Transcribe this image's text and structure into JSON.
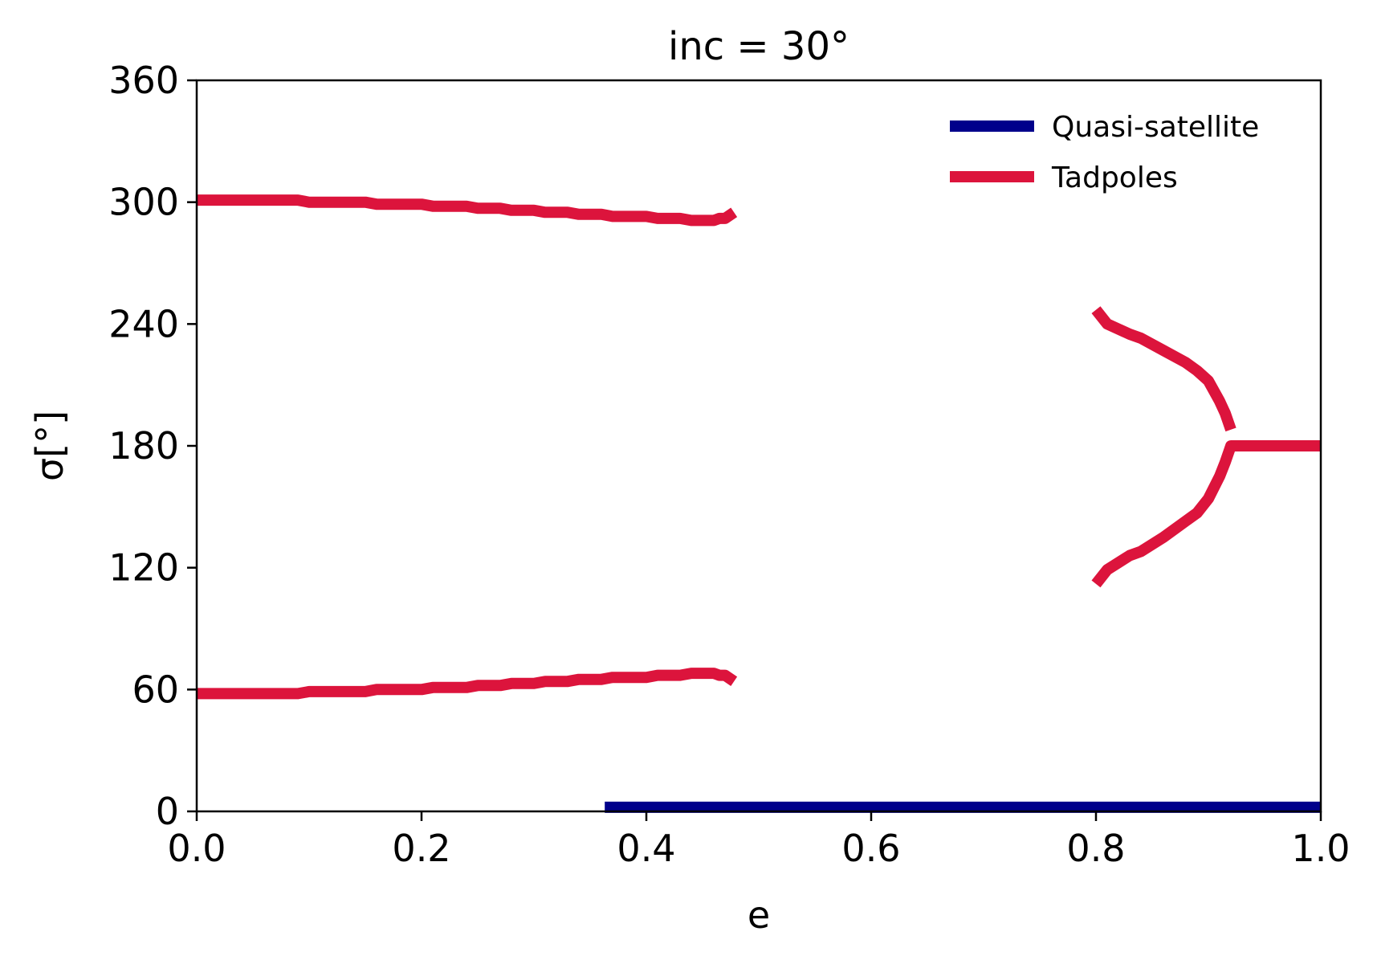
{
  "chart_data": {
    "type": "line",
    "title": "inc = 30°",
    "xlabel": "e",
    "ylabel": "σ[°]",
    "xlim": [
      0.0,
      1.0
    ],
    "ylim": [
      0,
      360
    ],
    "xticks": [
      "0.0",
      "0.2",
      "0.4",
      "0.6",
      "0.8",
      "1.0"
    ],
    "yticks": [
      "0",
      "60",
      "120",
      "180",
      "240",
      "300",
      "360"
    ],
    "grid": false,
    "legend_position": "top-right",
    "series": [
      {
        "name": "Quasi-satellite",
        "color": "#00008b",
        "segments": [
          [
            [
              0.363,
              2
            ],
            [
              0.5,
              2
            ],
            [
              0.7,
              2
            ],
            [
              0.9,
              2
            ],
            [
              1.0,
              2
            ]
          ]
        ]
      },
      {
        "name": "Tadpoles",
        "color": "#dc143c",
        "segments": [
          [
            [
              0.0,
              301
            ],
            [
              0.09,
              301
            ],
            [
              0.1,
              300
            ],
            [
              0.15,
              300
            ],
            [
              0.16,
              299
            ],
            [
              0.2,
              299
            ],
            [
              0.21,
              298
            ],
            [
              0.24,
              298
            ],
            [
              0.25,
              297
            ],
            [
              0.27,
              297
            ],
            [
              0.28,
              296
            ],
            [
              0.3,
              296
            ],
            [
              0.31,
              295
            ],
            [
              0.33,
              295
            ],
            [
              0.34,
              294
            ],
            [
              0.36,
              294
            ],
            [
              0.37,
              293
            ],
            [
              0.4,
              293
            ],
            [
              0.41,
              292
            ],
            [
              0.43,
              292
            ],
            [
              0.44,
              291
            ],
            [
              0.46,
              291
            ],
            [
              0.465,
              292
            ],
            [
              0.47,
              292
            ],
            [
              0.478,
              295
            ]
          ],
          [
            [
              0.0,
              58
            ],
            [
              0.09,
              58
            ],
            [
              0.1,
              59
            ],
            [
              0.15,
              59
            ],
            [
              0.16,
              60
            ],
            [
              0.2,
              60
            ],
            [
              0.21,
              61
            ],
            [
              0.24,
              61
            ],
            [
              0.25,
              62
            ],
            [
              0.27,
              62
            ],
            [
              0.28,
              63
            ],
            [
              0.3,
              63
            ],
            [
              0.31,
              64
            ],
            [
              0.33,
              64
            ],
            [
              0.34,
              65
            ],
            [
              0.36,
              65
            ],
            [
              0.37,
              66
            ],
            [
              0.4,
              66
            ],
            [
              0.41,
              67
            ],
            [
              0.43,
              67
            ],
            [
              0.44,
              68
            ],
            [
              0.46,
              68
            ],
            [
              0.465,
              67
            ],
            [
              0.47,
              67
            ],
            [
              0.478,
              64
            ]
          ],
          [
            [
              0.8,
              247
            ],
            [
              0.81,
              240
            ],
            [
              0.83,
              235
            ],
            [
              0.84,
              233
            ],
            [
              0.86,
              227
            ],
            [
              0.88,
              221
            ],
            [
              0.89,
              217
            ],
            [
              0.9,
              212
            ],
            [
              0.91,
              202
            ],
            [
              0.915,
              196
            ],
            [
              0.92,
              188
            ]
          ],
          [
            [
              0.8,
              112
            ],
            [
              0.81,
              119
            ],
            [
              0.83,
              126
            ],
            [
              0.84,
              128
            ],
            [
              0.86,
              135
            ],
            [
              0.88,
              143
            ],
            [
              0.89,
              147
            ],
            [
              0.9,
              154
            ],
            [
              0.91,
              165
            ],
            [
              0.915,
              172
            ],
            [
              0.92,
              180
            ],
            [
              0.95,
              180
            ],
            [
              1.0,
              180
            ]
          ]
        ]
      }
    ]
  }
}
